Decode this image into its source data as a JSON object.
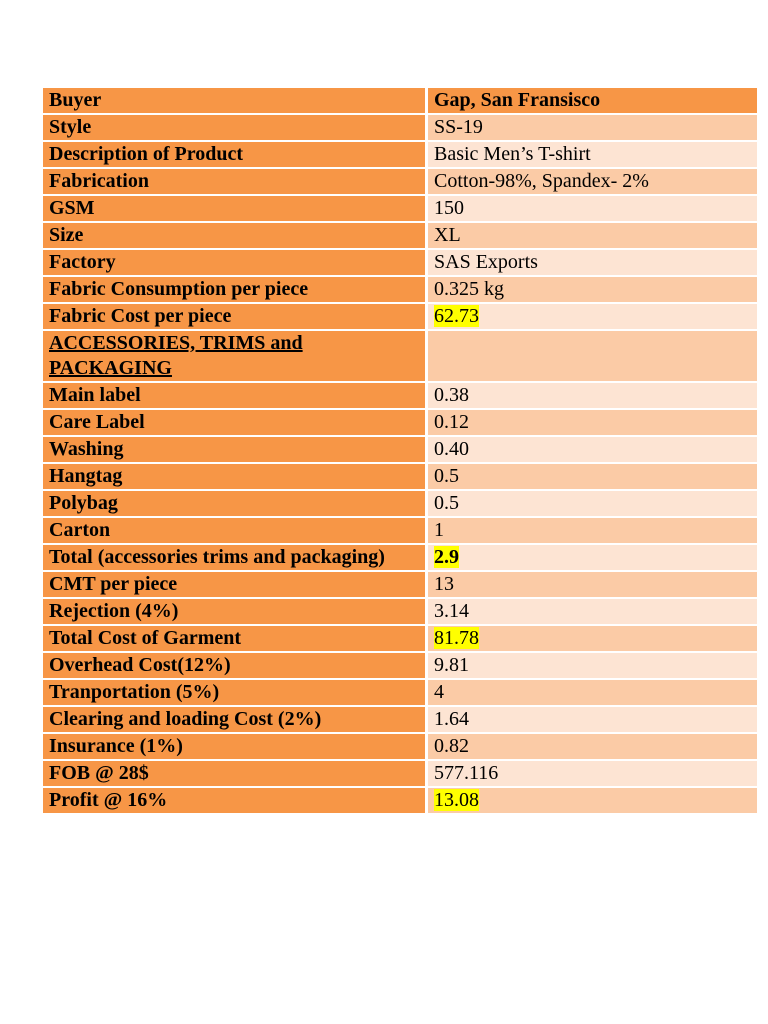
{
  "table": {
    "rows": [
      {
        "label": "Buyer",
        "value": "Gap, San Fransisco"
      },
      {
        "label": "Style",
        "value": "SS-19"
      },
      {
        "label": "Description of Product",
        "value": "Basic Men’s T-shirt"
      },
      {
        "label": "Fabrication",
        "value": "Cotton-98%, Spandex- 2%"
      },
      {
        "label": "GSM",
        "value": "150"
      },
      {
        "label": "Size",
        "value": "XL"
      },
      {
        "label": "Factory",
        "value": "SAS Exports"
      },
      {
        "label": "Fabric Consumption per piece",
        "value": "0.325 kg"
      },
      {
        "label": "Fabric Cost per piece",
        "value": "62.73"
      },
      {
        "label": "ACCESSORIES, TRIMS and PACKAGING",
        "value": ""
      },
      {
        "label": "Main label",
        "value": "0.38"
      },
      {
        "label": "Care Label",
        "value": "0.12"
      },
      {
        "label": "Washing",
        "value": "0.40"
      },
      {
        "label": "Hangtag",
        "value": "0.5"
      },
      {
        "label": "Polybag",
        "value": "0.5"
      },
      {
        "label": "Carton",
        "value": "1"
      },
      {
        "label": "Total (accessories trims and packaging)",
        "value": "2.9"
      },
      {
        "label": "CMT per piece",
        "value": "13"
      },
      {
        "label": "Rejection (4%)",
        "value": "3.14"
      },
      {
        "label": "Total Cost of Garment",
        "value": "81.78"
      },
      {
        "label": "Overhead Cost(12%)",
        "value": "9.81"
      },
      {
        "label": "Tranportation (5%)",
        "value": "4"
      },
      {
        "label": "Clearing and loading Cost (2%)",
        "value": "1.64"
      },
      {
        "label": "Insurance (1%)",
        "value": "0.82"
      },
      {
        "label": "FOB @ 28$",
        "value": "577.116"
      },
      {
        "label": "Profit @ 16%",
        "value": "13.08"
      }
    ]
  },
  "colors": {
    "label_bg": "#f79646",
    "value_bg_dark": "#fbcba6",
    "value_bg_light": "#fde4d3",
    "highlight": "#ffff00"
  }
}
